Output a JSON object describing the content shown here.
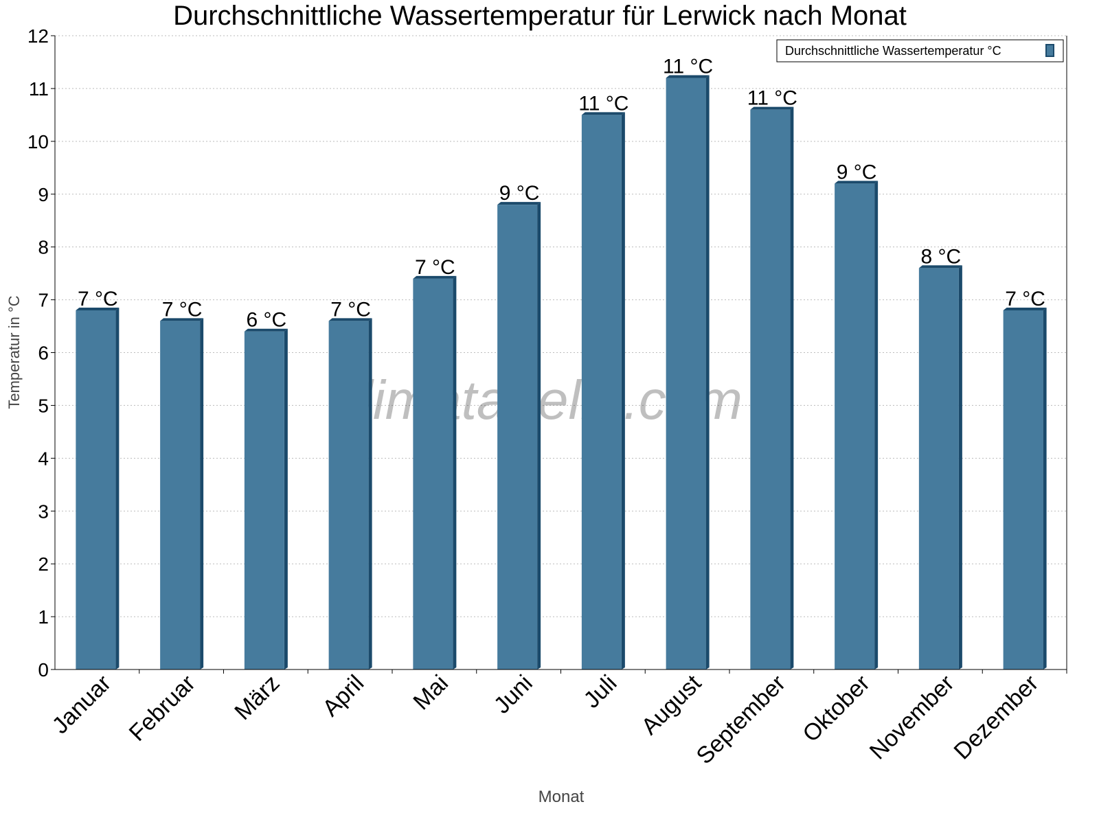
{
  "chart_data": {
    "type": "bar",
    "title": "Durchschnittliche Wassertemperatur für Lerwick nach Monat",
    "xlabel": "Monat",
    "ylabel": "Temperatur in °C",
    "categories": [
      "Januar",
      "Februar",
      "März",
      "April",
      "Mai",
      "Juni",
      "Juli",
      "August",
      "September",
      "Oktober",
      "November",
      "Dezember"
    ],
    "series": [
      {
        "name": "Durchschnittliche Wassertemperatur °C",
        "values": [
          6.8,
          6.6,
          6.4,
          6.6,
          7.4,
          8.8,
          10.5,
          11.2,
          10.6,
          9.2,
          7.6,
          6.8
        ],
        "data_labels": [
          "7 °C",
          "7 °C",
          "6 °C",
          "7 °C",
          "7 °C",
          "9 °C",
          "11 °C",
          "11 °C",
          "11 °C",
          "9 °C",
          "8 °C",
          "7 °C"
        ]
      }
    ],
    "ylim": [
      0,
      12
    ],
    "yticks": [
      "0",
      "1",
      "2",
      "3",
      "4",
      "5",
      "6",
      "7",
      "8",
      "9",
      "10",
      "11",
      "12"
    ],
    "grid": true,
    "legend_position": "top-right",
    "colors": {
      "bar": "#467b9d",
      "bar_side": "#1b4a6b"
    },
    "watermark": "klimatabelle.com"
  }
}
